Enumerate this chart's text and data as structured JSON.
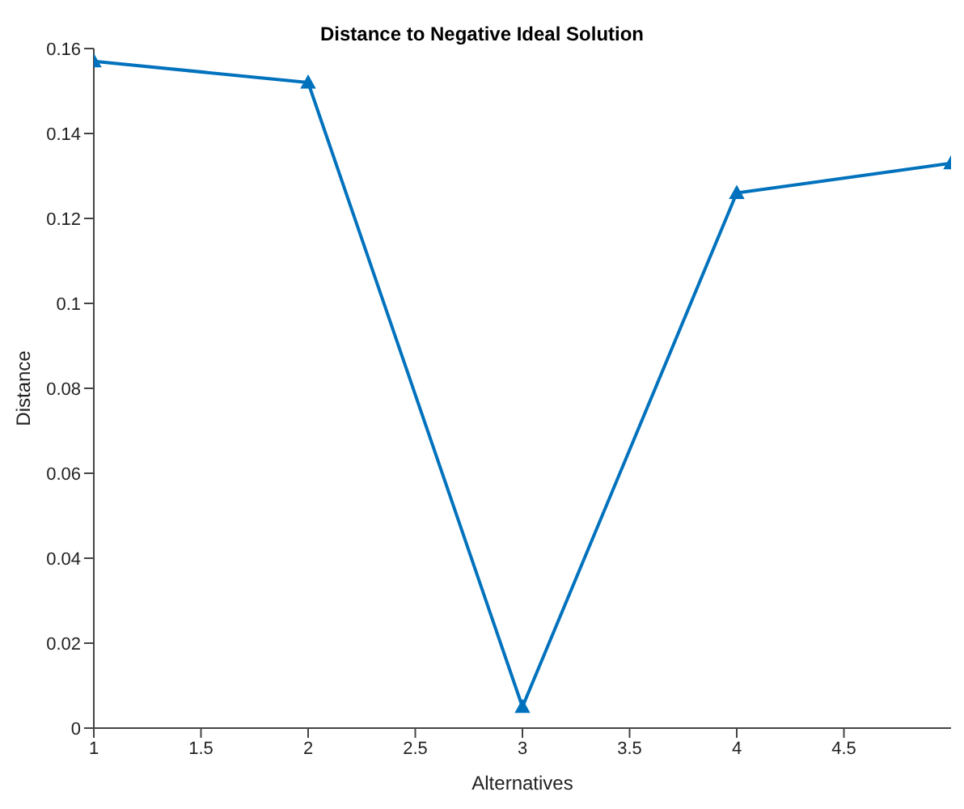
{
  "chart_data": {
    "type": "line",
    "title": "Distance to Negative Ideal Solution",
    "xlabel": "Alternatives",
    "ylabel": "Distance",
    "x": [
      1,
      2,
      3,
      4,
      5
    ],
    "series": [
      {
        "color": "#0072bd",
        "values": [
          0.157,
          0.152,
          0.005,
          0.126,
          0.133
        ]
      }
    ],
    "xlim": [
      1,
      5
    ],
    "xticks": [
      1,
      1.5,
      2,
      2.5,
      3,
      3.5,
      4,
      4.5
    ],
    "ylim": [
      0,
      0.16
    ],
    "yticks": [
      0,
      0.02,
      0.04,
      0.06,
      0.08,
      0.1,
      0.12,
      0.14,
      0.16
    ],
    "grid": false,
    "legend": false,
    "marker": "triangle",
    "line_style": "solid"
  }
}
